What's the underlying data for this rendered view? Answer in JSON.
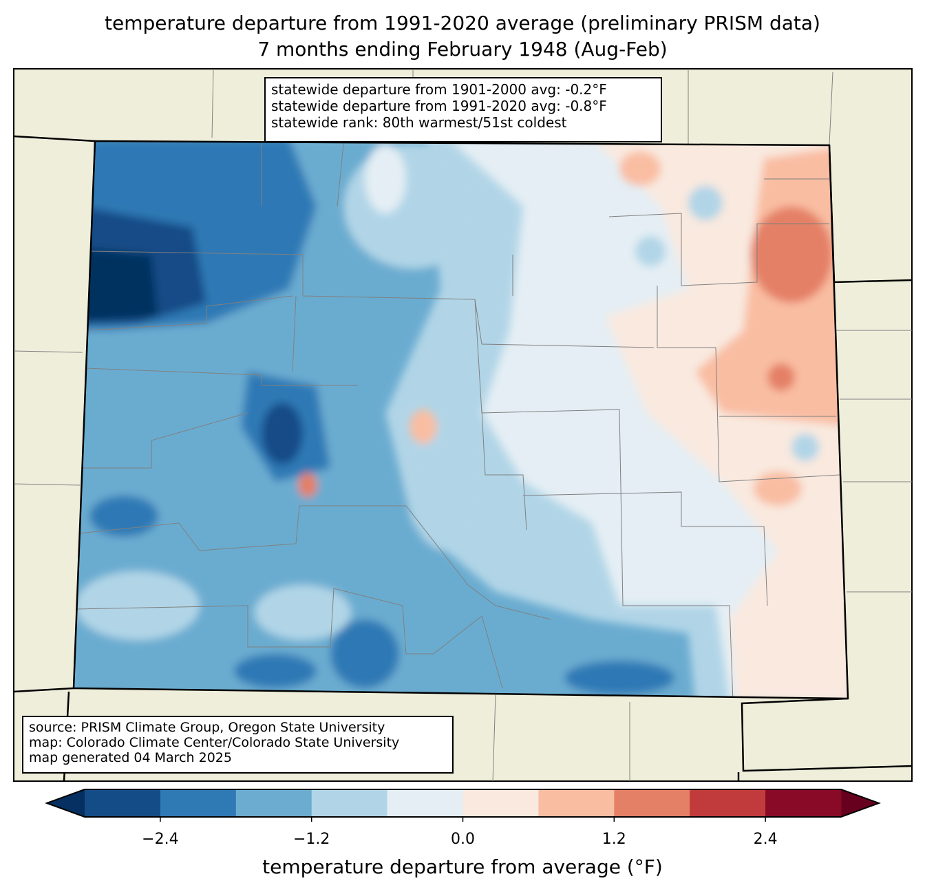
{
  "title": {
    "line1": "temperature departure from 1991-2020 average (preliminary PRISM data)",
    "line2": "7 months ending February 1948 (Aug-Feb)"
  },
  "stats_box": {
    "line1": "statewide departure from 1901-2000 avg: -0.2°F",
    "line2": "statewide departure from 1991-2020 avg: -0.8°F",
    "line3": "statewide rank: 80th warmest/51st coldest"
  },
  "source_box": {
    "line1": "source: PRISM Climate Group, Oregon State University",
    "line2": "map: Colorado Climate Center/Colorado State University",
    "line3": "map generated 04 March 2025"
  },
  "colorbar": {
    "label": "temperature departure from average (°F)",
    "bounds": [
      -3.0,
      -2.4,
      -1.8,
      -1.2,
      -0.6,
      0.0,
      0.6,
      1.2,
      1.8,
      2.4,
      3.0
    ],
    "colors": [
      "#144c87",
      "#2f79b5",
      "#6bacd0",
      "#b1d5e7",
      "#e4eef4",
      "#f9e9df",
      "#f9bda2",
      "#e48066",
      "#c23b3c",
      "#880a26"
    ],
    "under_color": "#053061",
    "over_color": "#67001f",
    "ticks": [
      "−2.4",
      "−1.2",
      "0.0",
      "1.2",
      "2.4"
    ],
    "tick_values": [
      -2.4,
      -1.2,
      0.0,
      1.2,
      2.4
    ]
  },
  "map_colors": {
    "land": "#efeedb",
    "border": "#000000",
    "county": "#808080"
  }
}
